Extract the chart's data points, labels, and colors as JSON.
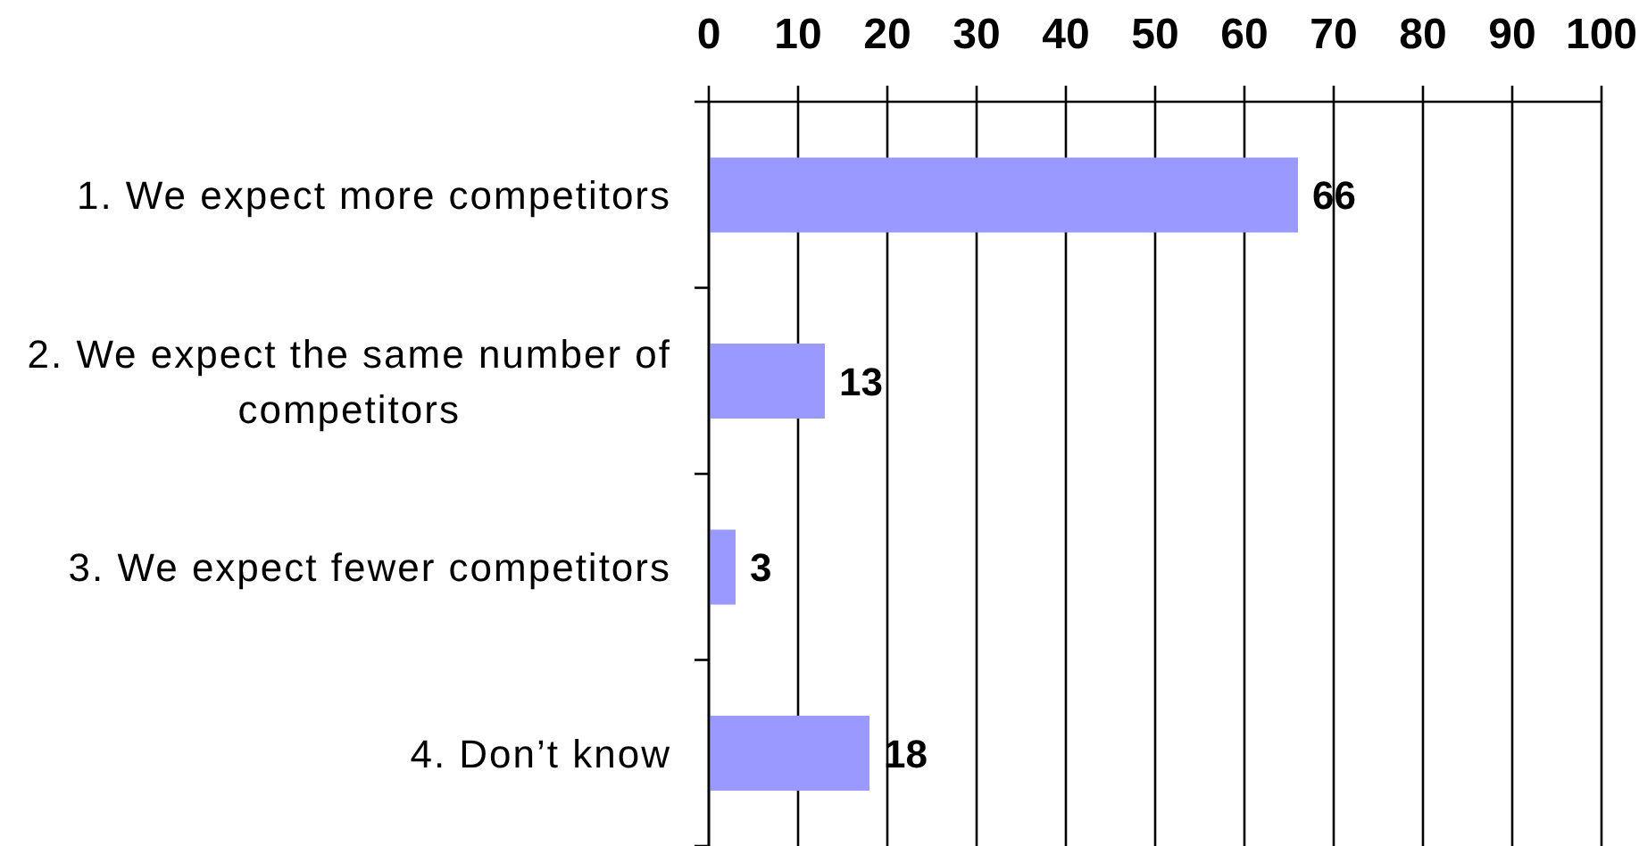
{
  "chart_data": {
    "type": "bar",
    "orientation": "horizontal",
    "categories": [
      "1. We expect more competitors",
      "2. We expect the same number of competitors",
      "3. We expect fewer competitors",
      "4. Don’t know"
    ],
    "values": [
      66,
      13,
      3,
      18
    ],
    "color": "#9999ff",
    "xlim": [
      0,
      100
    ],
    "xticks": [
      0,
      10,
      20,
      30,
      40,
      50,
      60,
      70,
      80,
      90,
      100
    ],
    "grid": "x",
    "data_labels": true
  }
}
